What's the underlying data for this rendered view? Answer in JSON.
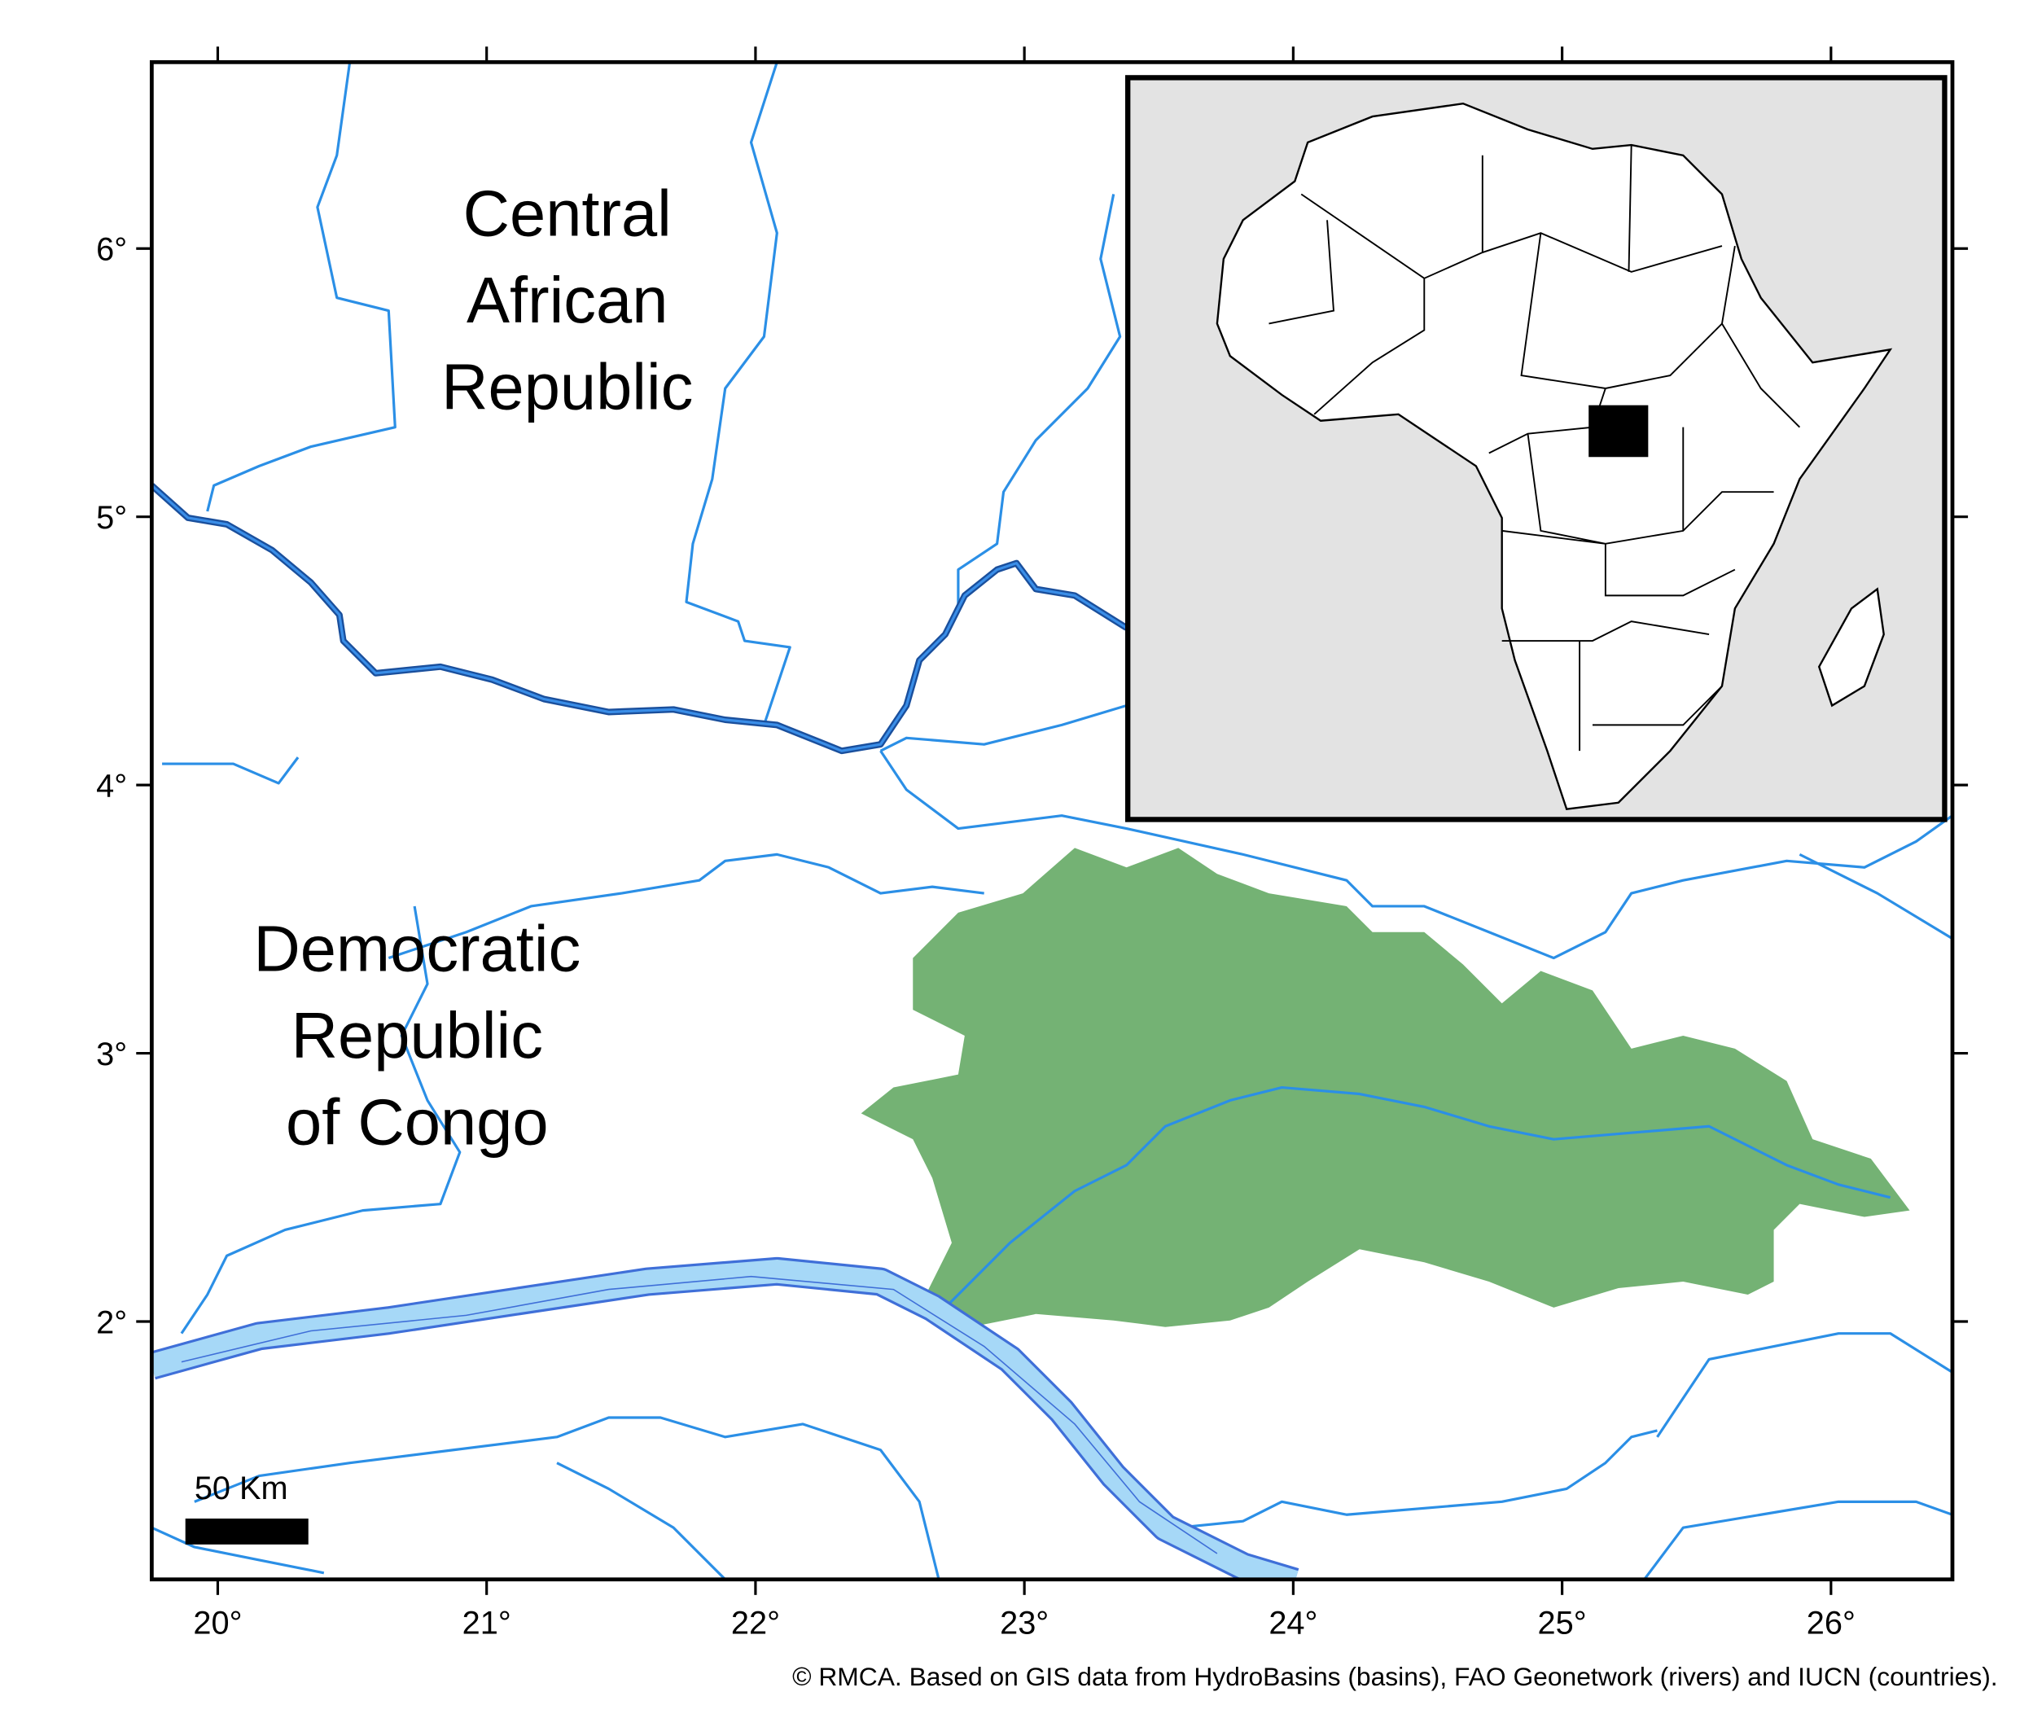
{
  "map": {
    "labels": {
      "car": [
        "Central",
        "African",
        "Republic"
      ],
      "drc": [
        "Democratic",
        "Republic",
        "of Congo"
      ]
    },
    "scale_bar": "50 Km",
    "x_ticks": [
      "20°",
      "21°",
      "22°",
      "23°",
      "24°",
      "25°",
      "26°"
    ],
    "y_ticks": [
      "6°",
      "5°",
      "4°",
      "3°",
      "2°"
    ],
    "credit": "© RMCA. Based on GIS data from HydroBasins (basins), FAO Geonetwork (rivers) and IUCN (countries)."
  }
}
